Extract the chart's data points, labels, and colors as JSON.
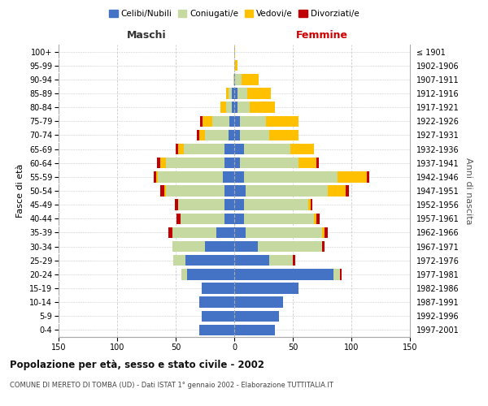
{
  "age_groups": [
    "0-4",
    "5-9",
    "10-14",
    "15-19",
    "20-24",
    "25-29",
    "30-34",
    "35-39",
    "40-44",
    "45-49",
    "50-54",
    "55-59",
    "60-64",
    "65-69",
    "70-74",
    "75-79",
    "80-84",
    "85-89",
    "90-94",
    "95-99",
    "100+"
  ],
  "birth_years": [
    "1997-2001",
    "1992-1996",
    "1987-1991",
    "1982-1986",
    "1977-1981",
    "1972-1976",
    "1967-1971",
    "1962-1966",
    "1957-1961",
    "1952-1956",
    "1947-1951",
    "1942-1946",
    "1937-1941",
    "1932-1936",
    "1927-1931",
    "1922-1926",
    "1917-1921",
    "1912-1916",
    "1907-1911",
    "1902-1906",
    "≤ 1901"
  ],
  "maschi_celibi": [
    30,
    28,
    30,
    28,
    40,
    42,
    25,
    15,
    8,
    8,
    8,
    10,
    8,
    8,
    5,
    4,
    2,
    2,
    0,
    0,
    0
  ],
  "maschi_coniugati": [
    0,
    0,
    0,
    0,
    5,
    10,
    28,
    38,
    38,
    40,
    50,
    55,
    50,
    35,
    20,
    15,
    5,
    3,
    1,
    0,
    0
  ],
  "maschi_vedovi": [
    0,
    0,
    0,
    0,
    0,
    0,
    0,
    0,
    0,
    0,
    2,
    2,
    5,
    5,
    5,
    8,
    5,
    2,
    0,
    0,
    0
  ],
  "maschi_divorziati": [
    0,
    0,
    0,
    0,
    0,
    0,
    0,
    3,
    3,
    3,
    3,
    2,
    3,
    2,
    2,
    2,
    0,
    0,
    0,
    0,
    0
  ],
  "femmine_celibi": [
    35,
    38,
    42,
    55,
    85,
    30,
    20,
    10,
    8,
    8,
    10,
    8,
    5,
    8,
    5,
    5,
    3,
    3,
    1,
    0,
    0
  ],
  "femmine_coniugati": [
    0,
    0,
    0,
    0,
    5,
    20,
    55,
    65,
    60,
    55,
    70,
    80,
    50,
    40,
    25,
    22,
    10,
    8,
    5,
    1,
    0
  ],
  "femmine_vedovi": [
    0,
    0,
    0,
    0,
    0,
    0,
    0,
    2,
    2,
    2,
    15,
    25,
    15,
    20,
    25,
    28,
    22,
    20,
    15,
    2,
    1
  ],
  "femmine_divorziati": [
    0,
    0,
    0,
    0,
    2,
    2,
    2,
    3,
    3,
    2,
    3,
    2,
    2,
    0,
    0,
    0,
    0,
    0,
    0,
    0,
    0
  ],
  "color_celibi": "#4472c4",
  "color_coniugati": "#c5d9a0",
  "color_vedovi": "#ffc000",
  "color_divorziati": "#c00000",
  "title": "Popolazione per età, sesso e stato civile - 2002",
  "subtitle": "COMUNE DI MERETO DI TOMBA (UD) - Dati ISTAT 1° gennaio 2002 - Elaborazione TUTTITALIA.IT",
  "xlabel_left": "Maschi",
  "xlabel_right": "Femmine",
  "ylabel_left": "Fasce di età",
  "ylabel_right": "Anni di nascita",
  "xlim": 150,
  "background_color": "#ffffff",
  "grid_color": "#cccccc"
}
